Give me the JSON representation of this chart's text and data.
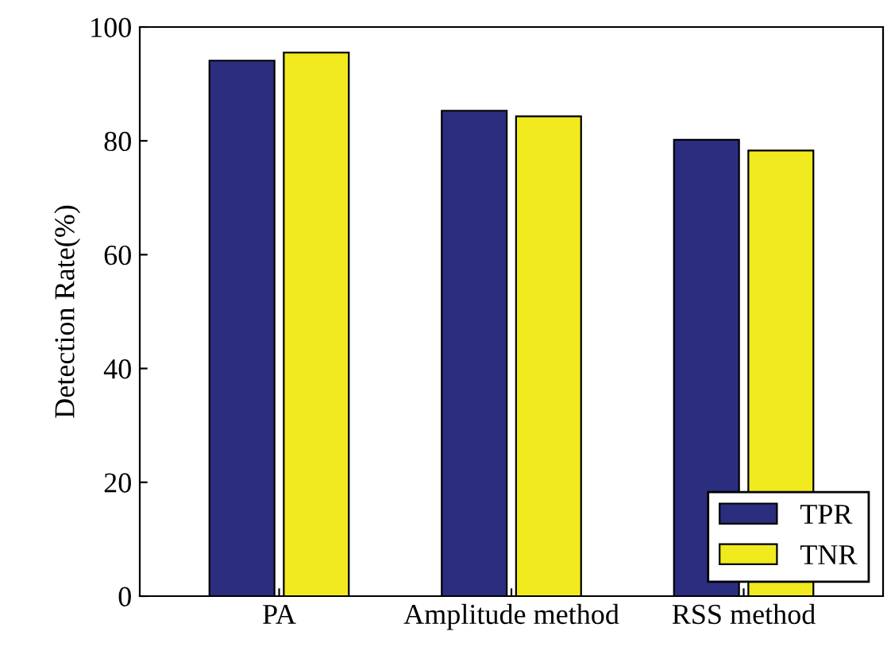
{
  "chart_data": {
    "type": "bar",
    "ylabel": "Detection Rate(%)",
    "categories": [
      "PA",
      "Amplitude method",
      "RSS method"
    ],
    "series": [
      {
        "name": "TPR",
        "color": "#2b2e7e",
        "values": [
          94.1,
          85.3,
          80.2
        ]
      },
      {
        "name": "TNR",
        "color": "#f0ea1f",
        "values": [
          95.5,
          84.3,
          78.3
        ]
      }
    ],
    "ylim": [
      0,
      100
    ],
    "yticks": [
      0,
      20,
      40,
      60,
      80,
      100
    ],
    "grid": false,
    "legend": "bottom right"
  }
}
